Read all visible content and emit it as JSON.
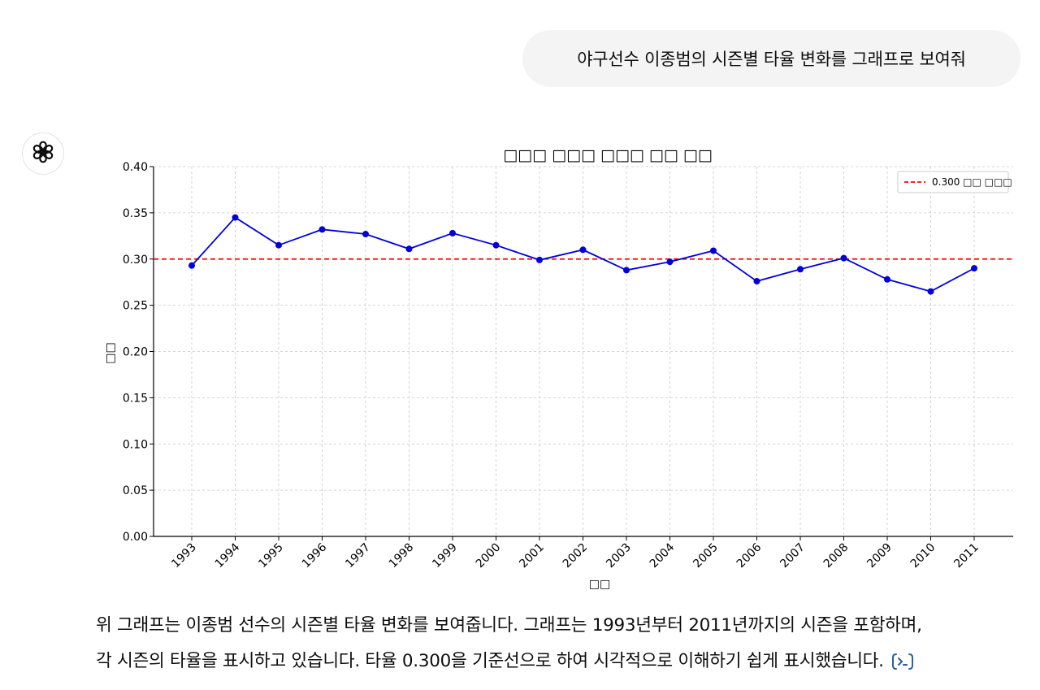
{
  "conversation": {
    "user_message": "야구선수 이종범의 시즌별 타율 변화를 그래프로 보여줘",
    "assistant_icon": "openai-logo-icon",
    "response_line_1": "위 그래프는 이종범 선수의 시즌별 타율 변화를 보여줍니다. 그래프는 1993년부터 2011년까지의 시즌을 포함하며,",
    "response_line_2": "각 시즌의 타율을 표시하고 있습니다. 타율 0.300을 기준선으로 하여 시각적으로 이해하기 쉽게 표시했습니다.",
    "code_icon": "code-interpreter-icon"
  },
  "chart_data": {
    "type": "line",
    "title": "□□□ □□□ □□□ □□ □□",
    "xlabel": "□□",
    "ylabel": "□□",
    "categories": [
      "1993",
      "1994",
      "1995",
      "1996",
      "1997",
      "1998",
      "1999",
      "2000",
      "2001",
      "2002",
      "2003",
      "2004",
      "2005",
      "2006",
      "2007",
      "2008",
      "2009",
      "2010",
      "2011"
    ],
    "series": [
      {
        "values": [
          0.293,
          0.345,
          0.315,
          0.332,
          0.327,
          0.311,
          0.328,
          0.315,
          0.299,
          0.31,
          0.288,
          0.297,
          0.309,
          0.276,
          0.289,
          0.301,
          0.278,
          0.265,
          0.29
        ],
        "color": "#0000dd"
      }
    ],
    "reference_line": {
      "value": 0.3,
      "label": "0.300 □□ □□□",
      "color": "#ff0000",
      "style": "dashed"
    },
    "ylim": [
      0.0,
      0.4
    ],
    "yticks": [
      "0.00",
      "0.05",
      "0.10",
      "0.15",
      "0.20",
      "0.25",
      "0.30",
      "0.35",
      "0.40"
    ],
    "grid": true,
    "legend_position": "top-right"
  }
}
